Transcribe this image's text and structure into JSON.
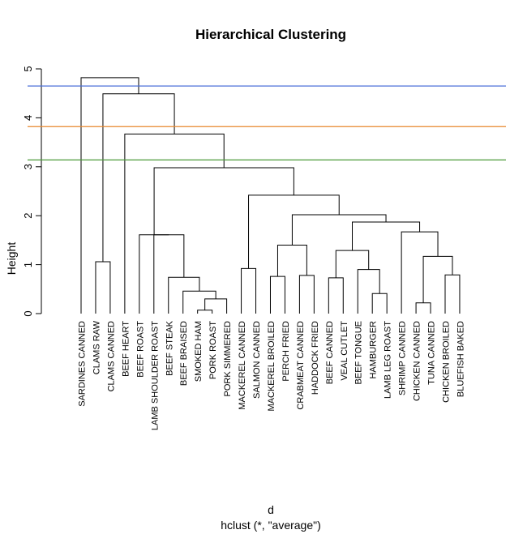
{
  "chart_data": {
    "type": "dendrogram",
    "title": "Hierarchical Clustering",
    "ylabel": "Height",
    "xlabel": "d",
    "sub": "hclust (*, \"average\")",
    "ylim": [
      0,
      5
    ],
    "yticks": [
      0,
      1,
      2,
      3,
      4,
      5
    ],
    "leaves": [
      "SARDINES CANNED",
      "CLAMS RAW",
      "CLAMS CANNED",
      "BEEF HEART",
      "BEEF ROAST",
      "LAMB SHOULDER ROAST",
      "BEEF STEAK",
      "BEEF BRAISED",
      "SMOKED HAM",
      "PORK ROAST",
      "PORK SIMMERED",
      "MACKEREL CANNED",
      "SALMON CANNED",
      "MACKEREL BROILED",
      "PERCH FRIED",
      "CRABMEAT CANNED",
      "HADDOCK FRIED",
      "BEEF CANNED",
      "VEAL CUTLET",
      "BEEF TONGUE",
      "HAMBURGER",
      "LAMB LEG ROAST",
      "SHRIMP CANNED",
      "CHICKEN CANNED",
      "TUNA CANNED",
      "CHICKEN BROILED",
      "BLUEFISH BAKED"
    ],
    "merges": [
      {
        "id": "m1",
        "left": "SMOKED HAM",
        "right": "PORK ROAST",
        "height": 0.07
      },
      {
        "id": "m2",
        "left": "PORK SIMMERED",
        "right": "m1",
        "height": 0.3
      },
      {
        "id": "m3",
        "left": "BEEF BRAISED",
        "right": "m2",
        "height": 0.46
      },
      {
        "id": "m4",
        "left": "BEEF STEAK",
        "right": "m3",
        "height": 0.74
      },
      {
        "id": "m5",
        "left": "LAMB SHOULDER ROAST",
        "right": "m4",
        "height": 1.61
      },
      {
        "id": "m6",
        "left": "BEEF ROAST",
        "right": "m5",
        "height": 1.61
      },
      {
        "id": "m7",
        "left": "MACKEREL CANNED",
        "right": "SALMON CANNED",
        "height": 0.92
      },
      {
        "id": "m8",
        "left": "MACKEREL BROILED",
        "right": "PERCH FRIED",
        "height": 0.76
      },
      {
        "id": "m9",
        "left": "CRABMEAT CANNED",
        "right": "HADDOCK FRIED",
        "height": 0.78
      },
      {
        "id": "m10",
        "left": "m8",
        "right": "m9",
        "height": 1.4
      },
      {
        "id": "m11",
        "left": "BEEF CANNED",
        "right": "VEAL CUTLET",
        "height": 0.73
      },
      {
        "id": "m12",
        "left": "HAMBURGER",
        "right": "LAMB LEG ROAST",
        "height": 0.41
      },
      {
        "id": "m13",
        "left": "BEEF TONGUE",
        "right": "m12",
        "height": 0.9
      },
      {
        "id": "m14",
        "left": "m11",
        "right": "m13",
        "height": 1.29
      },
      {
        "id": "m15",
        "left": "CHICKEN CANNED",
        "right": "TUNA CANNED",
        "height": 0.22
      },
      {
        "id": "m16",
        "left": "CHICKEN BROILED",
        "right": "BLUEFISH BAKED",
        "height": 0.79
      },
      {
        "id": "m17",
        "left": "m15",
        "right": "m16",
        "height": 1.17
      },
      {
        "id": "m18",
        "left": "SHRIMP CANNED",
        "right": "m17",
        "height": 1.67
      },
      {
        "id": "m19",
        "left": "m14",
        "right": "m18",
        "height": 1.87
      },
      {
        "id": "m20",
        "left": "m10",
        "right": "m19",
        "height": 2.02
      },
      {
        "id": "m21",
        "left": "m7",
        "right": "m20",
        "height": 2.42
      },
      {
        "id": "m22",
        "left": "m6",
        "right": "m21",
        "height": 2.98
      },
      {
        "id": "m23",
        "left": "BEEF HEART",
        "right": "m22",
        "height": 3.67
      },
      {
        "id": "m24",
        "left": "CLAMS RAW",
        "right": "CLAMS CANNED",
        "height": 1.06
      },
      {
        "id": "m25",
        "left": "m24",
        "right": "m23",
        "height": 4.49
      },
      {
        "id": "m26",
        "left": "SARDINES CANNED",
        "right": "m25",
        "height": 4.82
      }
    ],
    "cut_lines": [
      {
        "height": 4.65,
        "color": "#4a6fd8"
      },
      {
        "height": 3.82,
        "color": "#e8862b"
      },
      {
        "height": 3.14,
        "color": "#4d9a3a"
      }
    ],
    "grid": false,
    "legend": "none"
  }
}
